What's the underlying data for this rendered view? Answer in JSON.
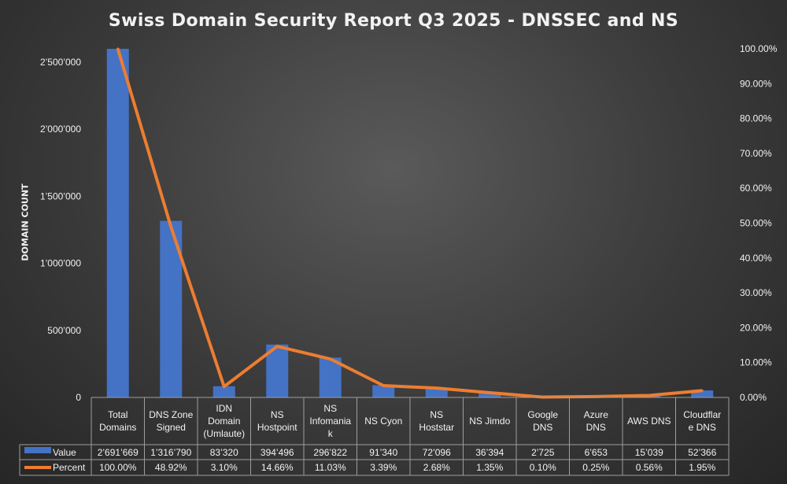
{
  "chart_data": {
    "type": "bar",
    "title": "Swiss Domain Security Report Q3 2025 - DNSSEC and NS",
    "ylabel": "DOMAIN COUNT",
    "ylim": [
      0,
      2600000
    ],
    "y_ticks": [
      "0",
      "500’000",
      "1’000’000",
      "1’500’000",
      "2’000’000",
      "2’500’000"
    ],
    "y2lim": [
      0,
      100
    ],
    "y2_ticks": [
      "0.00%",
      "10.00%",
      "20.00%",
      "30.00%",
      "40.00%",
      "50.00%",
      "60.00%",
      "70.00%",
      "80.00%",
      "90.00%",
      "100.00%"
    ],
    "categories": [
      [
        "Total",
        "Domains"
      ],
      [
        "DNS Zone",
        "Signed"
      ],
      [
        "IDN",
        "Domain",
        "(Umlaute)"
      ],
      [
        "NS",
        "Hostpoint"
      ],
      [
        "NS",
        "Infomania",
        "k"
      ],
      [
        "NS Cyon"
      ],
      [
        "NS",
        "Hoststar"
      ],
      [
        "NS Jimdo"
      ],
      [
        "Google",
        "DNS"
      ],
      [
        "Azure",
        "DNS"
      ],
      [
        "AWS DNS"
      ],
      [
        "Cloudflar",
        "e DNS"
      ]
    ],
    "series": [
      {
        "name": "Value",
        "type": "bar",
        "axis": "left",
        "color": "#4472c4",
        "values": [
          2691669,
          1316790,
          83320,
          394496,
          296822,
          91340,
          72096,
          36394,
          2725,
          6653,
          15039,
          52366
        ],
        "labels": [
          "2’691’669",
          "1’316’790",
          "83’320",
          "394’496",
          "296’822",
          "91’340",
          "72’096",
          "36’394",
          "2’725",
          "6’653",
          "15’039",
          "52’366"
        ]
      },
      {
        "name": "Percent",
        "type": "line",
        "axis": "right",
        "color": "#ed7d31",
        "values": [
          100.0,
          48.92,
          3.1,
          14.66,
          11.03,
          3.39,
          2.68,
          1.35,
          0.1,
          0.25,
          0.56,
          1.95
        ],
        "labels": [
          "100.00%",
          "48.92%",
          "3.10%",
          "14.66%",
          "11.03%",
          "3.39%",
          "2.68%",
          "1.35%",
          "0.10%",
          "0.25%",
          "0.56%",
          "1.95%"
        ]
      }
    ],
    "grid": true,
    "legend": "data-table"
  }
}
